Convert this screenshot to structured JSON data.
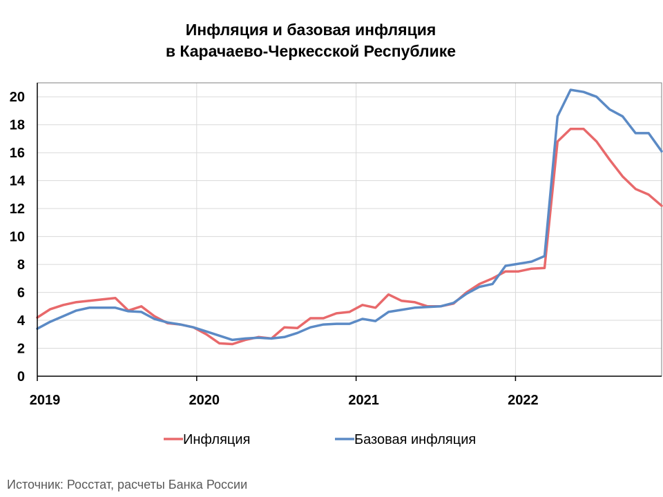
{
  "chart_data": {
    "type": "line",
    "title_lines": [
      "Инфляция и базовая инфляция",
      "в Карачаево-Черкесской Республике"
    ],
    "source": "Источник: Росстат, расчеты Банка России",
    "ylim": [
      0,
      21
    ],
    "yticks": [
      0,
      2,
      4,
      6,
      8,
      10,
      12,
      14,
      16,
      18,
      20
    ],
    "x_range": [
      0,
      47
    ],
    "xticks": [
      {
        "label": "2019",
        "pos": 0
      },
      {
        "label": "2020",
        "pos": 12
      },
      {
        "label": "2021",
        "pos": 24
      },
      {
        "label": "2022",
        "pos": 36
      }
    ],
    "grid": true,
    "legend_placement": "bottom",
    "series": [
      {
        "name": "Инфляция",
        "color": "#e8696b",
        "values": [
          4.2,
          4.8,
          5.1,
          5.3,
          5.4,
          5.5,
          5.6,
          4.7,
          5.0,
          4.3,
          3.8,
          3.7,
          3.5,
          3.0,
          2.35,
          2.3,
          2.6,
          2.8,
          2.7,
          3.5,
          3.45,
          4.15,
          4.15,
          4.5,
          4.6,
          5.1,
          4.9,
          5.85,
          5.4,
          5.3,
          5.0,
          5.0,
          5.2,
          6.0,
          6.6,
          7.0,
          7.5,
          7.5,
          7.7,
          7.75,
          16.8,
          17.7,
          17.7,
          16.8,
          15.5,
          14.3,
          13.4,
          13.0,
          12.2
        ]
      },
      {
        "name": "Базовая инфляция",
        "color": "#5b8ac5",
        "values": [
          3.4,
          3.9,
          4.3,
          4.7,
          4.9,
          4.9,
          4.9,
          4.65,
          4.6,
          4.1,
          3.85,
          3.7,
          3.5,
          3.2,
          2.9,
          2.6,
          2.7,
          2.75,
          2.7,
          2.8,
          3.1,
          3.5,
          3.7,
          3.75,
          3.75,
          4.1,
          3.95,
          4.6,
          4.75,
          4.9,
          4.95,
          5.0,
          5.25,
          5.9,
          6.4,
          6.6,
          7.9,
          8.05,
          8.2,
          8.6,
          18.6,
          20.5,
          20.35,
          20.0,
          19.1,
          18.6,
          17.4,
          17.4,
          16.1
        ]
      }
    ]
  }
}
